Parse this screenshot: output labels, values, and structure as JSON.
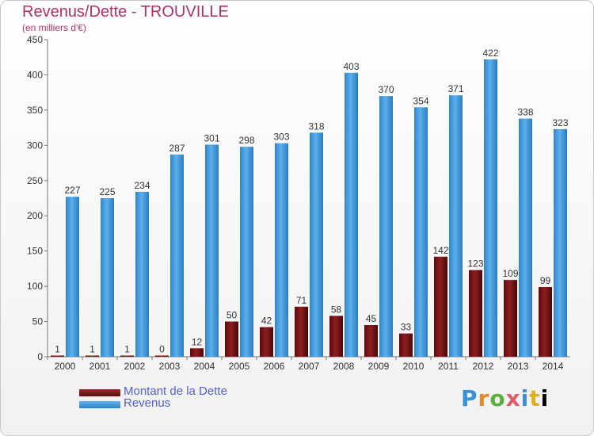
{
  "header": {
    "title": "Revenus/Dette - TROUVILLE",
    "subtitle": "(en milliers d'€)"
  },
  "chart_data": {
    "type": "bar",
    "categories": [
      "2000",
      "2001",
      "2002",
      "2003",
      "2004",
      "2005",
      "2006",
      "2007",
      "2008",
      "2009",
      "2010",
      "2011",
      "2012",
      "2013",
      "2014"
    ],
    "series": [
      {
        "name": "Montant de la Dette",
        "color": "#7a1214",
        "values": [
          1,
          1,
          1,
          0,
          12,
          50,
          42,
          71,
          58,
          45,
          33,
          142,
          123,
          109,
          99
        ]
      },
      {
        "name": "Revenus",
        "color": "#3f9be0",
        "values": [
          227,
          225,
          234,
          287,
          301,
          298,
          303,
          318,
          403,
          370,
          354,
          371,
          422,
          338,
          323
        ]
      }
    ],
    "yticks": [
      0,
      50,
      100,
      150,
      200,
      250,
      300,
      350,
      400,
      450
    ],
    "ylim": [
      0,
      450
    ],
    "grid": false,
    "legend_position": "bottom-left"
  },
  "logo": {
    "letters": [
      "P",
      "r",
      "o",
      "x",
      "i",
      "t",
      "i"
    ]
  }
}
